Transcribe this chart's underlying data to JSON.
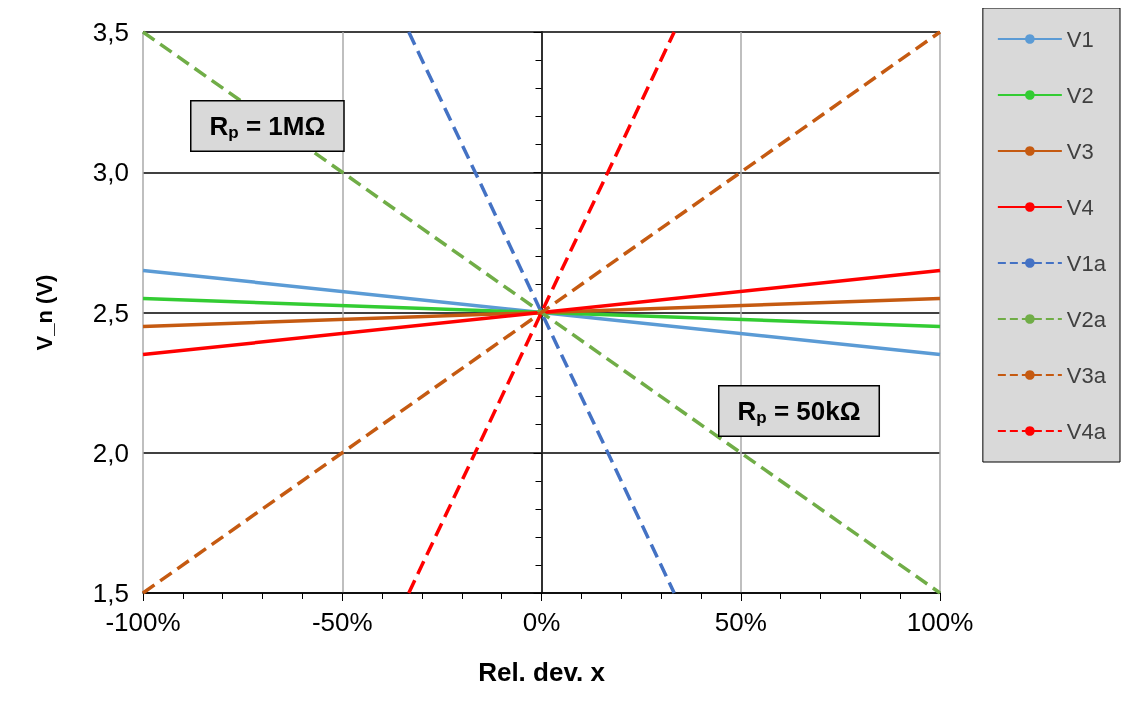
{
  "chart_data": {
    "type": "line",
    "xlabel": "Rel. dev. x",
    "ylabel": "V_n (V)",
    "annotations": [
      "R$_{p}$ = 1MΩ",
      "R$_{p}$ = 50kΩ"
    ],
    "xlim": [
      -100,
      100
    ],
    "xticks": [
      {
        "value": -100,
        "label": "-100%"
      },
      {
        "value": -50,
        "label": "-50%"
      },
      {
        "value": 0,
        "label": "0%"
      },
      {
        "value": 50,
        "label": "50%"
      },
      {
        "value": 100,
        "label": "100%"
      }
    ],
    "ylim": [
      1.5,
      3.5
    ],
    "yticks": [
      {
        "value": 1.5,
        "label": "1,5"
      },
      {
        "value": 2,
        "label": "2,0"
      },
      {
        "value": 2.5,
        "label": "2,5"
      },
      {
        "value": 3,
        "label": "3,0"
      },
      {
        "value": 3.5,
        "label": "3,5"
      }
    ],
    "grid": true,
    "legend": "right",
    "marker": "none",
    "series": [
      {
        "name": "V1",
        "color": "#5b9bd5",
        "x": [
          -100,
          100
        ],
        "values": [
          2.65,
          2.35
        ],
        "line_style": "solid"
      },
      {
        "name": "V2",
        "color": "#33cc33",
        "x": [
          -100,
          100
        ],
        "values": [
          2.55,
          2.45
        ],
        "line_style": "solid"
      },
      {
        "name": "V3",
        "color": "#c55a11",
        "x": [
          -100,
          100
        ],
        "values": [
          2.45,
          2.55
        ],
        "line_style": "solid"
      },
      {
        "name": "V4",
        "color": "#ff0000",
        "x": [
          -100,
          100
        ],
        "values": [
          2.35,
          2.65
        ],
        "line_style": "solid"
      },
      {
        "name": "V1a",
        "color": "#4472c4",
        "x": [
          -33.3,
          33.3
        ],
        "values": [
          3.5,
          1.5
        ],
        "line_style": "dashed"
      },
      {
        "name": "V2a",
        "color": "#70ad47",
        "x": [
          -100,
          100
        ],
        "values": [
          3.5,
          1.5
        ],
        "line_style": "dashed"
      },
      {
        "name": "V3a",
        "color": "#c55a11",
        "x": [
          -100,
          100
        ],
        "values": [
          1.5,
          3.5
        ],
        "line_style": "dashed"
      },
      {
        "name": "V4a",
        "color": "#ff0000",
        "x": [
          -33.3,
          33.3
        ],
        "values": [
          1.5,
          3.5
        ],
        "line_style": "dashed"
      }
    ]
  }
}
